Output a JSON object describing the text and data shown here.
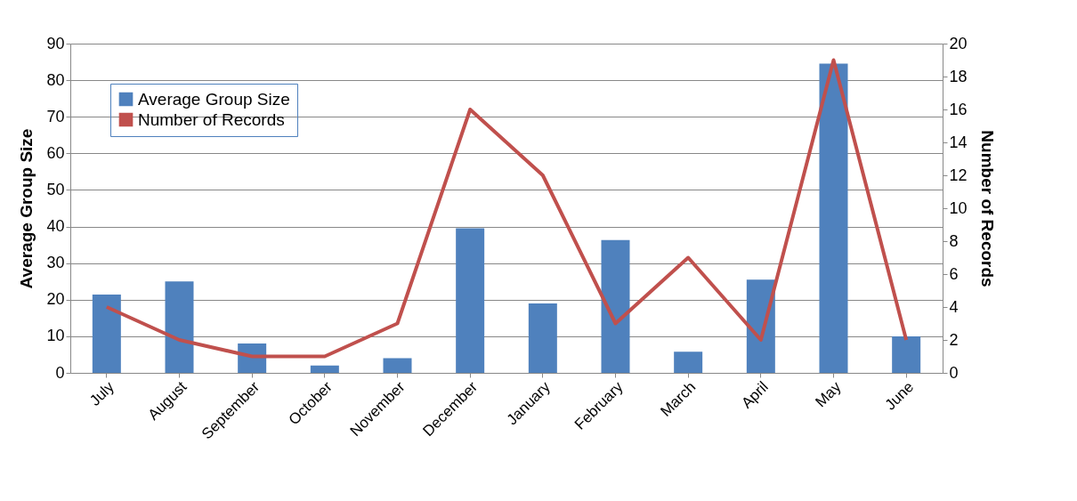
{
  "chart_data": {
    "type": "bar",
    "categories": [
      "July",
      "August",
      "September",
      "October",
      "November",
      "December",
      "January",
      "February",
      "March",
      "April",
      "May",
      "June"
    ],
    "ylabel": "Average Group Size",
    "y2label": "Number of Records",
    "series": [
      {
        "name": "Average Group Size",
        "color": "#4f81bd",
        "values": [
          21.4,
          25,
          8,
          2,
          4,
          39.5,
          19,
          36.3,
          5.8,
          25.5,
          84.5,
          10
        ]
      },
      {
        "name": "Number of Records",
        "type": "line",
        "axis": "y2",
        "color": "#c0504d",
        "values": [
          4,
          2,
          1,
          1,
          3,
          16,
          12,
          3,
          7,
          2,
          19,
          2
        ]
      }
    ],
    "ylim": [
      0,
      90
    ],
    "yticks": [
      0,
      10,
      20,
      30,
      40,
      50,
      60,
      70,
      80,
      90
    ],
    "y2lim": [
      0,
      20
    ],
    "y2ticks": [
      0,
      2,
      4,
      6,
      8,
      10,
      12,
      14,
      16,
      18,
      20
    ],
    "grid": "y",
    "legend": "top left",
    "marker": "none",
    "line_style": "solid"
  }
}
